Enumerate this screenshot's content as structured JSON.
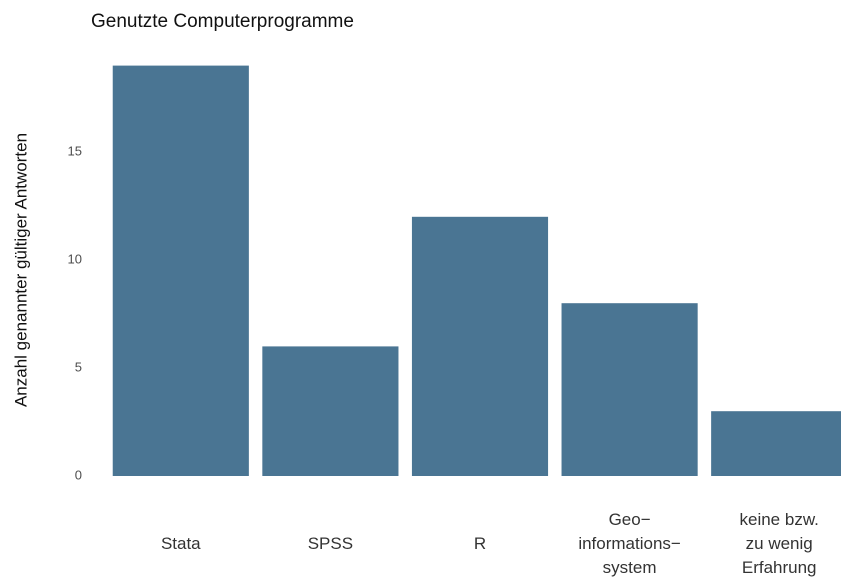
{
  "chart_data": {
    "type": "bar",
    "title": "Genutzte Computerprogramme",
    "y_label": "Anzahl genannter gültiger Antworten",
    "categories": [
      "Stata",
      "SPSS",
      "R",
      "Geo−\ninformations−\nsystem",
      "keine bzw.\nzu wenig\nErfahrung"
    ],
    "values": [
      19,
      6,
      12,
      8,
      3
    ],
    "color": "#4a7593",
    "ylim": [
      0,
      20
    ],
    "yticks": [
      0,
      5,
      10,
      15
    ],
    "grid": false
  }
}
